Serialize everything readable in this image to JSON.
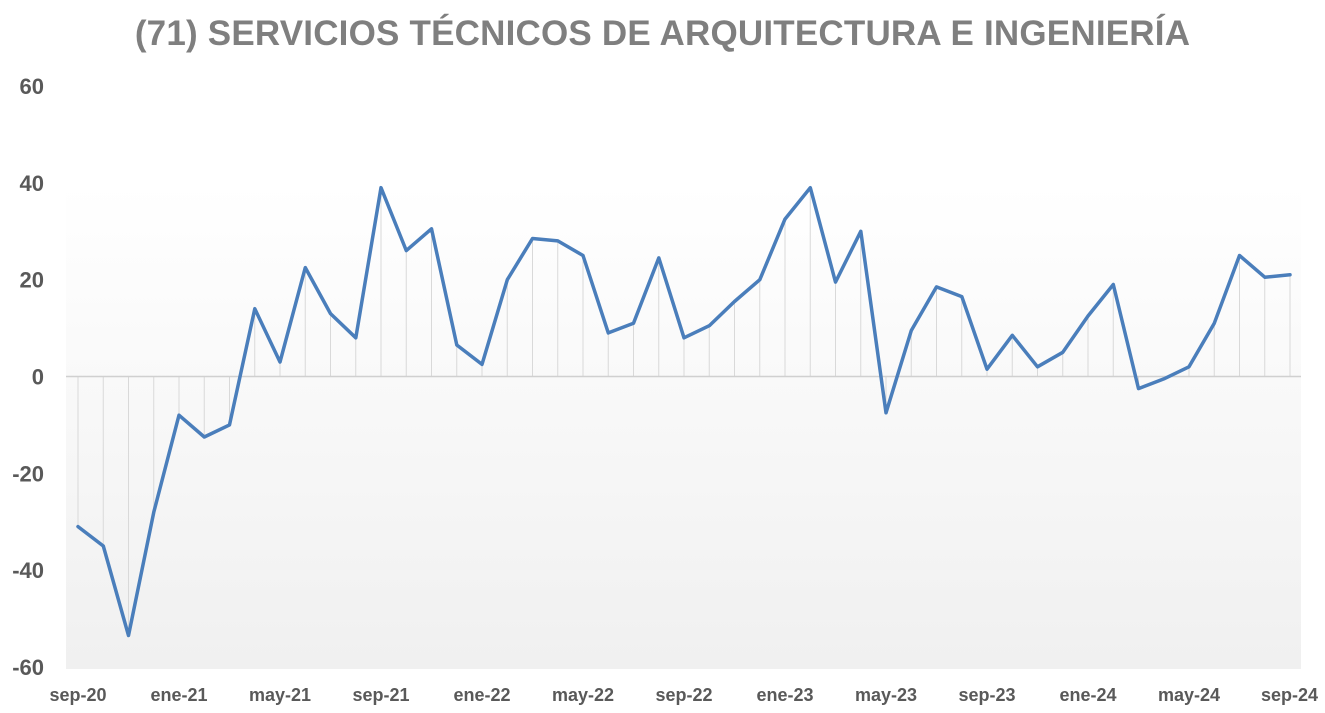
{
  "chart_data": {
    "type": "line",
    "title": "(71) SERVICIOS TÉCNICOS DE ARQUITECTURA E INGENIERÍA",
    "xlabel": "",
    "ylabel": "",
    "ylim": [
      -60,
      60
    ],
    "yticks": [
      "60",
      "40",
      "20",
      "0",
      "-20",
      "-40",
      "-60"
    ],
    "x": [
      "sep-20",
      "oct-20",
      "nov-20",
      "dic-20",
      "ene-21",
      "feb-21",
      "mar-21",
      "abr-21",
      "may-21",
      "jun-21",
      "jul-21",
      "ago-21",
      "sep-21",
      "oct-21",
      "nov-21",
      "dic-21",
      "ene-22",
      "feb-22",
      "mar-22",
      "abr-22",
      "may-22",
      "jun-22",
      "jul-22",
      "ago-22",
      "sep-22",
      "oct-22",
      "nov-22",
      "dic-22",
      "ene-23",
      "feb-23",
      "mar-23",
      "abr-23",
      "may-23",
      "jun-23",
      "jul-23",
      "ago-23",
      "sep-23",
      "oct-23",
      "nov-23",
      "dic-23",
      "ene-24",
      "feb-24",
      "mar-24",
      "abr-24",
      "may-24",
      "jun-24",
      "jul-24",
      "ago-24",
      "sep-24"
    ],
    "xtick_labels": [
      "sep-20",
      "ene-21",
      "may-21",
      "sep-21",
      "ene-22",
      "may-22",
      "sep-22",
      "ene-23",
      "may-23",
      "sep-23",
      "ene-24",
      "may-24",
      "sep-24"
    ],
    "series": [
      {
        "values": [
          -31,
          -35,
          -53.5,
          -28,
          -8,
          -12.5,
          -10,
          14,
          3,
          22.5,
          13,
          8,
          39,
          26,
          30.5,
          6.5,
          2.5,
          20,
          28.5,
          28,
          25,
          9,
          11,
          24.5,
          8,
          10.5,
          15.5,
          20,
          32.5,
          39,
          19.5,
          30,
          -7.5,
          9.5,
          18.5,
          16.5,
          1.5,
          8.5,
          2,
          5,
          12.5,
          19,
          -2.5,
          -0.5,
          2,
          11,
          25,
          20.5,
          21
        ],
        "color": "#4a7ebb"
      }
    ],
    "grid": "vertical drop lines",
    "colors": {
      "line": "#4a7ebb",
      "title": "#7f7f7f",
      "ticks": "#595959"
    }
  }
}
